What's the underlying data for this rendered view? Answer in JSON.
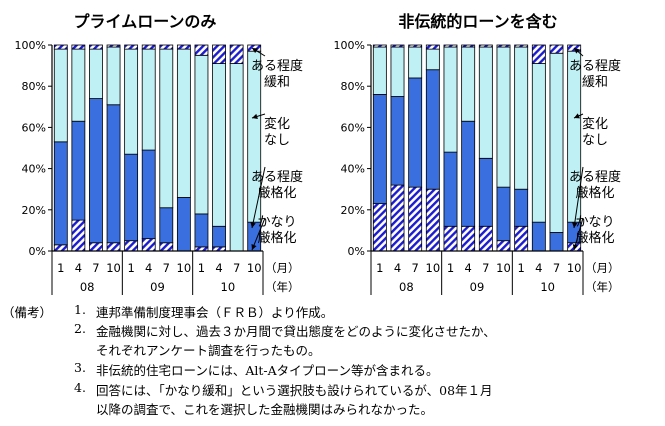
{
  "colors": {
    "kanari_genkaku": "#1b1bd0",
    "aru_teido_genkaku": "#3a6fe0",
    "henka_nashi": "#bff0f4",
    "aru_teido_kanwa": "#1b1bd0",
    "outline": "#000000"
  },
  "chart_data": [
    {
      "type": "bar",
      "stacked": true,
      "title": "プライムローンのみ",
      "x_tick_labels": [
        "1",
        "4",
        "7",
        "10",
        "1",
        "4",
        "7",
        "10",
        "1",
        "4",
        "7",
        "10"
      ],
      "year_labels": [
        "08",
        "09",
        "10"
      ],
      "month_unit_label": "（月）",
      "year_unit_label": "（年）",
      "ylim": [
        0,
        100
      ],
      "y_ticks": [
        "0%",
        "20%",
        "40%",
        "60%",
        "80%",
        "100%"
      ],
      "grid": false,
      "legend_callouts": [
        "ある程度\n緩和",
        "変化\nなし",
        "ある程度\n厳格化",
        "かなり\n厳格化"
      ],
      "series": [
        {
          "name": "かなり厳格化",
          "key": "kanari_genkaku",
          "pattern": "hatch",
          "values": [
            3,
            15,
            4,
            4,
            5,
            6,
            4,
            0,
            2,
            2,
            0,
            0
          ]
        },
        {
          "name": "ある程度厳格化",
          "key": "aru_teido_genkaku",
          "pattern": "solid",
          "values": [
            50,
            48,
            70,
            67,
            42,
            43,
            17,
            26,
            16,
            10,
            0,
            14
          ]
        },
        {
          "name": "変化なし",
          "key": "henka_nashi",
          "pattern": "solid",
          "values": [
            45,
            35,
            24,
            28,
            51,
            49,
            77,
            72,
            77,
            79,
            91,
            83
          ]
        },
        {
          "name": "ある程度緩和",
          "key": "aru_teido_kanwa",
          "pattern": "hatch",
          "values": [
            2,
            2,
            2,
            1,
            2,
            2,
            2,
            2,
            5,
            9,
            9,
            3
          ]
        }
      ]
    },
    {
      "type": "bar",
      "stacked": true,
      "title": "非伝統的ローンを含む",
      "x_tick_labels": [
        "1",
        "4",
        "7",
        "10",
        "1",
        "4",
        "7",
        "10",
        "1",
        "4",
        "7",
        "10"
      ],
      "year_labels": [
        "08",
        "09",
        "10"
      ],
      "month_unit_label": "（月）",
      "year_unit_label": "（年）",
      "ylim": [
        0,
        100
      ],
      "y_ticks": [
        "0%",
        "20%",
        "40%",
        "60%",
        "80%",
        "100%"
      ],
      "grid": false,
      "legend_callouts": [
        "ある程度\n緩和",
        "変化\nなし",
        "ある程度\n厳格化",
        "かなり\n厳格化"
      ],
      "series": [
        {
          "name": "かなり厳格化",
          "key": "kanari_genkaku",
          "pattern": "hatch",
          "values": [
            23,
            32,
            31,
            30,
            12,
            12,
            12,
            5,
            12,
            0,
            0,
            4
          ]
        },
        {
          "name": "ある程度厳格化",
          "key": "aru_teido_genkaku",
          "pattern": "solid",
          "values": [
            53,
            43,
            53,
            58,
            36,
            51,
            33,
            26,
            18,
            14,
            9,
            10
          ]
        },
        {
          "name": "変化なし",
          "key": "henka_nashi",
          "pattern": "solid",
          "values": [
            23,
            24,
            15,
            10,
            51,
            36,
            54,
            68,
            69,
            77,
            87,
            83
          ]
        },
        {
          "name": "ある程度緩和",
          "key": "aru_teido_kanwa",
          "pattern": "hatch",
          "values": [
            1,
            1,
            1,
            2,
            1,
            1,
            1,
            1,
            1,
            9,
            4,
            3
          ]
        }
      ]
    }
  ],
  "notes": {
    "prefix": "（備考）",
    "items": [
      {
        "num": "1.",
        "text": "連邦準備制度理事会（ＦＲＢ）より作成。"
      },
      {
        "num": "2.",
        "text": "金融機関に対し、過去３か月間で貸出態度をどのように変化させたか、",
        "cont": "それぞれアンケート調査を行ったもの。"
      },
      {
        "num": "3.",
        "text": "非伝統的住宅ローンには、Alt-Aタイプローン等が含まれる。"
      },
      {
        "num": "4.",
        "text": "回答には、「かなり緩和」という選択肢も設けられているが、08年１月",
        "cont": "以降の調査で、これを選択した金融機関はみられなかった。"
      }
    ]
  }
}
